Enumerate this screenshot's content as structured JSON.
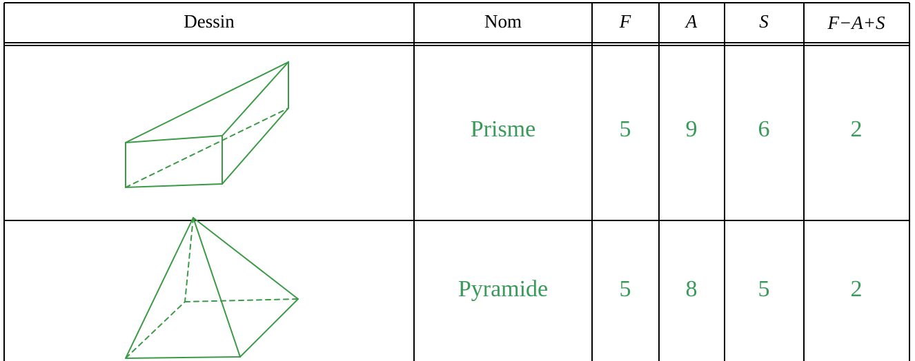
{
  "table": {
    "headers": [
      "Dessin",
      "Nom",
      "F",
      "A",
      "S",
      "F−A+S"
    ],
    "rows": [
      [
        "Prisme",
        "5",
        "9",
        "6",
        "2"
      ],
      [
        "Pyramide",
        "5",
        "8",
        "5",
        "2"
      ]
    ]
  }
}
